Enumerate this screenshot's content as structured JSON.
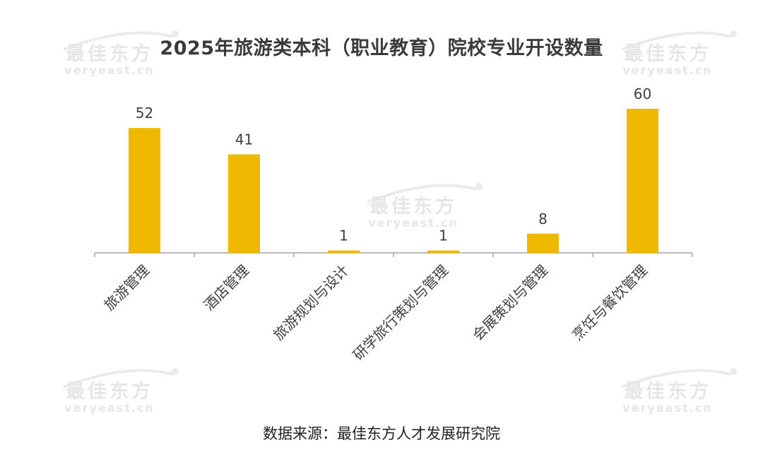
{
  "page": {
    "source": "数据来源：最佳东方人才发展研究院"
  },
  "watermark": {
    "cn": "最佳东方",
    "en": "veryeast.cn"
  },
  "colors": {
    "bar": "#f0b900",
    "axis": "#a6a6a6",
    "label": "#3f3f3f"
  },
  "chart_data": {
    "type": "bar",
    "title": "2025年旅游类本科（职业教育）院校专业开设数量",
    "categories": [
      "旅游管理",
      "酒店管理",
      "旅游规划与设计",
      "研学旅行策划与管理",
      "会展策划与管理",
      "烹饪与餐饮管理"
    ],
    "values": [
      52,
      41,
      1,
      1,
      8,
      60
    ],
    "data_labels": [
      "52",
      "41",
      "1",
      "1",
      "8",
      "60"
    ],
    "xlabel": "",
    "ylabel": "",
    "ylim": [
      0,
      60
    ],
    "grid": false,
    "legend": "none"
  }
}
